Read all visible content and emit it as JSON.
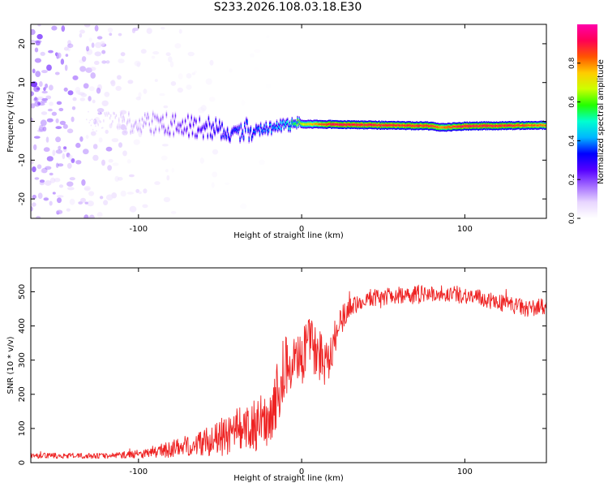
{
  "title": "S233.2026.108.03.18.E30",
  "colors": {
    "snr_line": "#ee2222",
    "axis": "#000000",
    "colormap": [
      "#ffffff",
      "#e8d6ff",
      "#a36bff",
      "#5500ff",
      "#0000ff",
      "#00b7ff",
      "#00ffd0",
      "#22ff00",
      "#ccff00",
      "#ffcc00",
      "#ff5500",
      "#ff0055",
      "#ff00aa"
    ]
  },
  "chart_data": [
    {
      "type": "heatmap",
      "name": "spectrogram",
      "title": "",
      "xlabel": "Height of straight line (km)",
      "ylabel": "Frequency (Hz)",
      "xlim": [
        -166,
        150
      ],
      "ylim": [
        -25,
        25
      ],
      "xticks": [
        -100,
        0,
        100
      ],
      "yticks": [
        -20,
        -10,
        0,
        10,
        20
      ],
      "colorbar": {
        "label": "Normalized spectral amplitude",
        "range": [
          0,
          1
        ],
        "ticks": [
          0.0,
          0.2,
          0.4,
          0.6,
          0.8
        ]
      },
      "ridge": {
        "x": [
          -166,
          -120,
          -100,
          -80,
          -60,
          -40,
          -20,
          -10,
          0,
          20,
          50,
          80,
          85,
          100,
          125,
          150
        ],
        "freq": [
          0,
          0,
          -0.5,
          -0.8,
          -1.5,
          -2.5,
          -1.8,
          -1.0,
          -0.7,
          -0.8,
          -1.0,
          -1.2,
          -1.6,
          -1.2,
          -1.1,
          -1.0
        ],
        "amplitude": [
          0.03,
          0.06,
          0.12,
          0.2,
          0.3,
          0.38,
          0.42,
          0.48,
          0.7,
          0.97,
          0.93,
          0.92,
          0.85,
          0.95,
          0.93,
          0.85
        ]
      },
      "background_noise": {
        "x": [
          -166,
          -140,
          -120,
          -100,
          -80,
          -60,
          -40,
          -20,
          0
        ],
        "amplitude": [
          0.16,
          0.13,
          0.1,
          0.06,
          0.04,
          0.025,
          0.012,
          0.005,
          0.0
        ]
      }
    },
    {
      "type": "line",
      "name": "snr",
      "title": "",
      "xlabel": "Height of straight line (km)",
      "ylabel": "SNR (10 * v/v)",
      "xlim": [
        -166,
        150
      ],
      "ylim": [
        0,
        570
      ],
      "xticks": [
        -100,
        0,
        100
      ],
      "yticks": [
        0,
        100,
        200,
        300,
        400,
        500
      ],
      "series": [
        {
          "name": "SNR",
          "x": [
            -166,
            -140,
            -120,
            -100,
            -90,
            -80,
            -70,
            -60,
            -50,
            -40,
            -30,
            -20,
            -15,
            -10,
            -5,
            0,
            5,
            10,
            15,
            20,
            25,
            30,
            40,
            50,
            60,
            70,
            80,
            90,
            100,
            110,
            120,
            130,
            140,
            150
          ],
          "mean": [
            20,
            20,
            20,
            25,
            30,
            40,
            50,
            60,
            70,
            85,
            100,
            130,
            200,
            270,
            300,
            300,
            360,
            320,
            300,
            360,
            420,
            460,
            480,
            485,
            490,
            495,
            495,
            495,
            490,
            480,
            470,
            460,
            450,
            460
          ],
          "spread": [
            8,
            8,
            8,
            12,
            15,
            25,
            30,
            40,
            50,
            60,
            70,
            80,
            90,
            100,
            80,
            80,
            70,
            90,
            80,
            60,
            40,
            30,
            25,
            25,
            25,
            25,
            25,
            25,
            25,
            25,
            25,
            25,
            25,
            25
          ]
        }
      ]
    }
  ]
}
